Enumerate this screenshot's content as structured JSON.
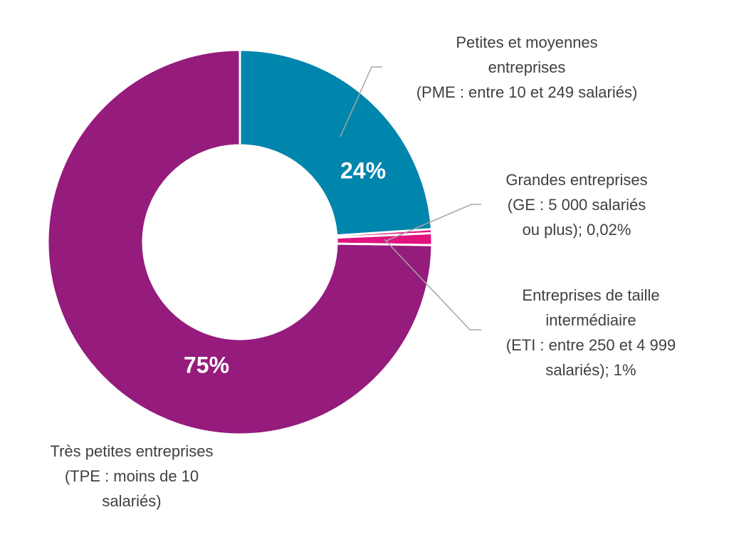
{
  "chart_data": {
    "type": "pie",
    "variant": "donut",
    "title": "",
    "slices": [
      {
        "name": "Petites et moyennes entreprises (PME : entre 10 et 249 salariés)",
        "value": 24,
        "color": "#0085AC",
        "data_label": "24%",
        "label_lines": [
          "Petites et moyennes",
          "entreprises",
          "(PME : entre 10 et 249 salariés)"
        ]
      },
      {
        "name": "Grandes entreprises (GE : 5 000 salariés ou plus)",
        "value": 0.02,
        "color": "#E0137F",
        "data_label": "",
        "label_lines": [
          "Grandes entreprises",
          "(GE : 5 000 salariés",
          "ou plus); 0,02%"
        ]
      },
      {
        "name": "Entreprises de taille intermédiaire (ETI : entre 250 et 4 999 salariés)",
        "value": 1,
        "color": "#E0137F",
        "data_label": "",
        "label_lines": [
          "Entreprises de taille",
          "intermédiaire",
          "(ETI : entre 250 et 4 999",
          "salariés); 1%"
        ]
      },
      {
        "name": "Très petites entreprises (TPE : moins de 10 salariés)",
        "value": 75,
        "color": "#951B7D",
        "data_label": "75%",
        "label_lines": [
          "Très petites entreprises",
          "(TPE : moins de 10",
          "salariés)"
        ]
      }
    ],
    "legend": "none",
    "colors": {
      "separator": "#ffffff",
      "leader_line": "#A6A6A6",
      "label_text": "#404040",
      "data_label_text": "#ffffff"
    }
  }
}
